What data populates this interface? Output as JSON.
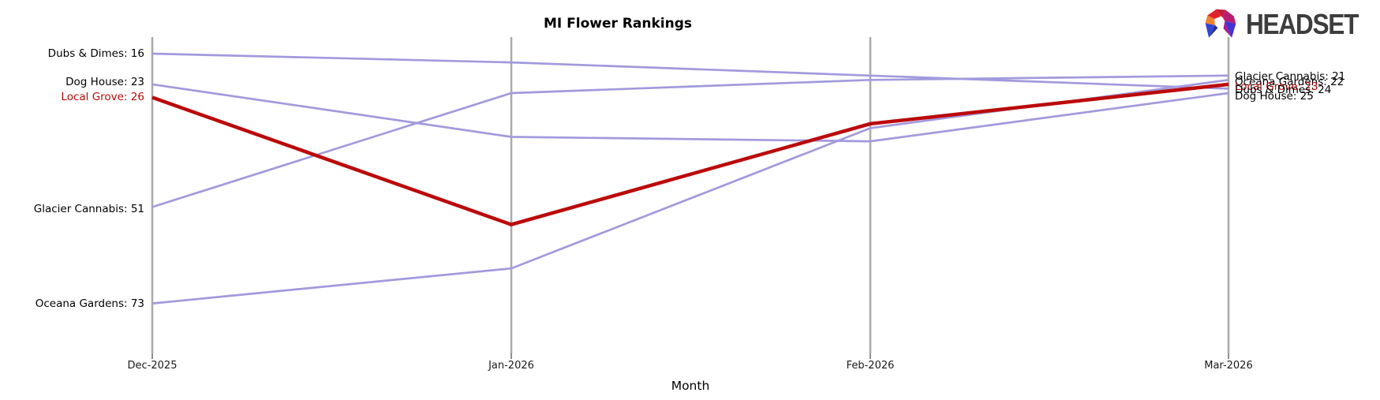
{
  "header": {
    "title": "MI Flower Rankings",
    "brand_name": "HEADSET"
  },
  "chart_data": {
    "type": "line",
    "subtype": "bump-ranking-chart",
    "title": "MI Flower Rankings",
    "xlabel": "Month",
    "categories": [
      "Dec-2025",
      "Jan-2026",
      "Feb-2026",
      "Mar-2026"
    ],
    "series": [
      {
        "name": "Dubs & Dimes",
        "values": [
          16,
          18,
          21,
          24
        ],
        "color": "#a29add",
        "highlight": false
      },
      {
        "name": "Dog House",
        "values": [
          23,
          35,
          36,
          25
        ],
        "color": "#a29add",
        "highlight": false
      },
      {
        "name": "Glacier Cannabis",
        "values": [
          51,
          25,
          22,
          21
        ],
        "color": "#a29add",
        "highlight": false
      },
      {
        "name": "Oceana Gardens",
        "values": [
          73,
          65,
          33,
          22
        ],
        "color": "#a29add",
        "highlight": false
      },
      {
        "name": "Local Grove",
        "values": [
          26,
          55,
          32,
          23
        ],
        "color": "#bb0a0a",
        "highlight": true
      }
    ],
    "y_axis": {
      "meaning": "rank (lower number = better, drawn higher)",
      "inverted": true,
      "range_shown": [
        16,
        73
      ],
      "gridlines": false,
      "vertical_month_axes": true
    },
    "axis_color": "#ababab",
    "left_labels": [
      {
        "text": "Dubs & Dimes: 16",
        "color": "#000000"
      },
      {
        "text": "Dog House: 23",
        "color": "#000000"
      },
      {
        "text": "Local Grove: 26",
        "color": "#bb0a0a"
      },
      {
        "text": "Glacier Cannabis: 51",
        "color": "#000000"
      },
      {
        "text": "Oceana Gardens: 73",
        "color": "#000000"
      }
    ],
    "right_labels": [
      {
        "text": "Glacier Cannabis: 21",
        "color": "#000000"
      },
      {
        "text": "Oceana Gardens: 22",
        "color": "#000000"
      },
      {
        "text": "Local Grove: 23",
        "color": "#bb0a0a"
      },
      {
        "text": "Dubs & Dimes: 24",
        "color": "#000000"
      },
      {
        "text": "Dog House: 25",
        "color": "#000000"
      }
    ]
  },
  "logo": {
    "facet_colors": [
      "#3346cf",
      "#272a96",
      "#f08232",
      "#e02329",
      "#c41d3c",
      "#b91d72",
      "#a91d8d",
      "#4234d2"
    ],
    "text_color": "#3d3d3d"
  }
}
